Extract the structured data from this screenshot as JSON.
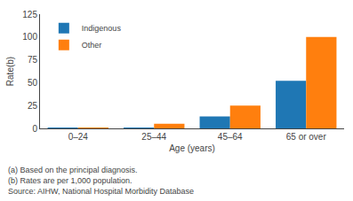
{
  "chart_data": {
    "type": "bar",
    "categories": [
      "0–24",
      "25–44",
      "45–64",
      "65 or over"
    ],
    "series": [
      {
        "name": "Indigenous",
        "values": [
          0.3,
          0.8,
          13.0,
          52.0
        ]
      },
      {
        "name": "Other",
        "values": [
          0.3,
          5.0,
          25.0,
          100.0
        ]
      }
    ],
    "xlabel": "Age (years)",
    "ylabel": "Rate(b)",
    "ylim": [
      0,
      125
    ],
    "yticks": [
      0,
      25,
      50,
      75,
      100,
      125
    ],
    "grid": false,
    "legend": "upper left",
    "annotations": [
      "(a) Based on the principal diagnosis.",
      "(b) Rates are per 1,000 population.",
      "Source: AIHW, National Hospital Morbidity Database"
    ]
  }
}
